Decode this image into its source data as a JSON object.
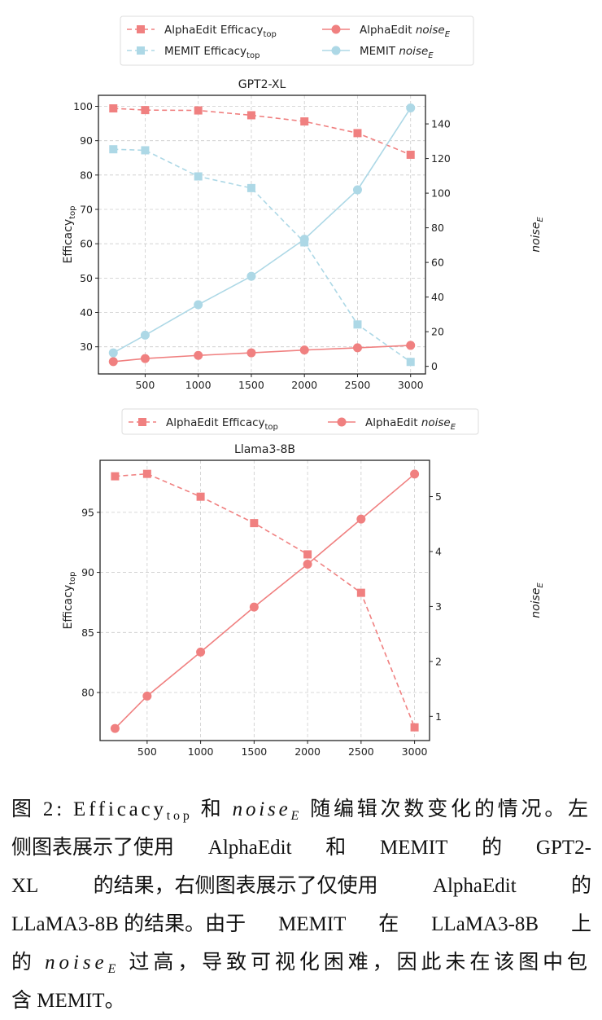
{
  "colors": {
    "alphaedit": "#F08080",
    "memit": "#ADD8E6",
    "grid": "#cccccc",
    "axis": "#222222"
  },
  "chart_data": [
    {
      "type": "line",
      "title": "GPT2-XL",
      "x": [
        200,
        500,
        1000,
        1500,
        2000,
        2500,
        3000
      ],
      "xlim": [
        60,
        3140
      ],
      "xticks": [
        500,
        1000,
        1500,
        2000,
        2500,
        3000
      ],
      "ylabel": {
        "main": "Efficacy",
        "sub": "top"
      },
      "y2label": {
        "main": "noise",
        "sub": "E"
      },
      "ylim": [
        22.1,
        103.2
      ],
      "yticks": [
        30,
        40,
        50,
        60,
        70,
        80,
        90,
        100
      ],
      "y2lim": [
        -4.4,
        156.5
      ],
      "y2ticks": [
        0,
        20,
        40,
        60,
        80,
        100,
        120,
        140
      ],
      "grid": true,
      "legend": {
        "placement": "top-center",
        "columns": 2,
        "entries": [
          {
            "name": "AlphaEdit Efficacy",
            "sub": "top",
            "italic": false,
            "series": 0
          },
          {
            "name": "MEMIT Efficacy",
            "sub": "top",
            "italic": false,
            "series": 1
          },
          {
            "prefix": "AlphaEdit ",
            "name": "noise",
            "sub": "E",
            "italic": true,
            "series": 2
          },
          {
            "prefix": "MEMIT ",
            "name": "noise",
            "sub": "E",
            "italic": true,
            "series": 3
          }
        ]
      },
      "series": [
        {
          "name": "AlphaEdit Efficacy_top",
          "axis": "left",
          "style": "dashed",
          "marker": "square",
          "color": "#F08080",
          "values": [
            99.4,
            98.9,
            98.8,
            97.4,
            95.6,
            92.2,
            85.9
          ]
        },
        {
          "name": "MEMIT Efficacy_top",
          "axis": "left",
          "style": "dashed",
          "marker": "square",
          "color": "#ADD8E6",
          "values": [
            87.5,
            87.2,
            79.6,
            76.2,
            60.4,
            36.5,
            25.6
          ]
        },
        {
          "name": "AlphaEdit noise_E",
          "axis": "right",
          "style": "solid",
          "marker": "circle",
          "color": "#F08080",
          "values": [
            2.7,
            4.5,
            6.3,
            7.8,
            9.4,
            10.7,
            12.1
          ]
        },
        {
          "name": "MEMIT noise_E",
          "axis": "right",
          "style": "solid",
          "marker": "circle",
          "color": "#ADD8E6",
          "values": [
            7.8,
            18.0,
            35.6,
            52.0,
            73.4,
            101.9,
            149.2
          ]
        }
      ]
    },
    {
      "type": "line",
      "title": "Llama3-8B",
      "x": [
        200,
        500,
        1000,
        1500,
        2000,
        2500,
        3000
      ],
      "xlim": [
        60,
        3140
      ],
      "xticks": [
        500,
        1000,
        1500,
        2000,
        2500,
        3000
      ],
      "ylabel": {
        "main": "Efficacy",
        "sub": "top"
      },
      "y2label": {
        "main": "noise",
        "sub": "E"
      },
      "ylim": [
        76.0,
        99.33
      ],
      "yticks": [
        80,
        85,
        90,
        95
      ],
      "y2lim": [
        0.56,
        5.66
      ],
      "y2ticks": [
        1,
        2,
        3,
        4,
        5
      ],
      "grid": true,
      "legend": {
        "placement": "top-center",
        "columns": 2,
        "entries": [
          {
            "name": "AlphaEdit Efficacy",
            "sub": "top",
            "italic": false,
            "series": 0
          },
          {
            "prefix": "AlphaEdit ",
            "name": "noise",
            "sub": "E",
            "italic": true,
            "series": 1
          }
        ]
      },
      "series": [
        {
          "name": "AlphaEdit Efficacy_top",
          "axis": "left",
          "style": "dashed",
          "marker": "square",
          "color": "#F08080",
          "values": [
            98.0,
            98.2,
            96.3,
            94.1,
            91.5,
            88.3,
            77.1
          ]
        },
        {
          "name": "AlphaEdit noise_E",
          "axis": "right",
          "style": "solid",
          "marker": "circle",
          "color": "#F08080",
          "values": [
            0.78,
            1.37,
            2.17,
            2.99,
            3.77,
            4.59,
            5.41
          ]
        }
      ]
    }
  ],
  "caption": {
    "lines": [
      [
        {
          "t": "图 2: Efficacy"
        },
        {
          "t": "top",
          "c": "sub"
        },
        {
          "t": " 和 "
        },
        {
          "t": "noise",
          "c": "it"
        },
        {
          "t": "E",
          "c": "sub it"
        },
        {
          "t": " 随编辑次数变化的情况。左"
        }
      ],
      [
        {
          "t": "侧图表展示了使用"
        },
        {
          "t": "AlphaEdit"
        },
        {
          "t": "和"
        },
        {
          "t": "MEMIT"
        },
        {
          "t": "的"
        },
        {
          "t": "GPT2-"
        }
      ],
      [
        {
          "t": "XL"
        },
        {
          "t": "的结果，右侧图表展示了仅使用"
        },
        {
          "t": "AlphaEdit"
        },
        {
          "t": "的"
        }
      ],
      [
        {
          "t": "LLaMA3-8B 的结果。由于"
        },
        {
          "t": "MEMIT"
        },
        {
          "t": "在"
        },
        {
          "t": "LLaMA3-8B"
        },
        {
          "t": "上"
        }
      ],
      [
        {
          "t": "的 "
        },
        {
          "t": "noise",
          "c": "it"
        },
        {
          "t": "E",
          "c": "sub it"
        },
        {
          "t": " 过高，导致可视化困难，因此未在该图中包"
        }
      ],
      [
        {
          "t": "含 MEMIT。"
        }
      ]
    ]
  }
}
